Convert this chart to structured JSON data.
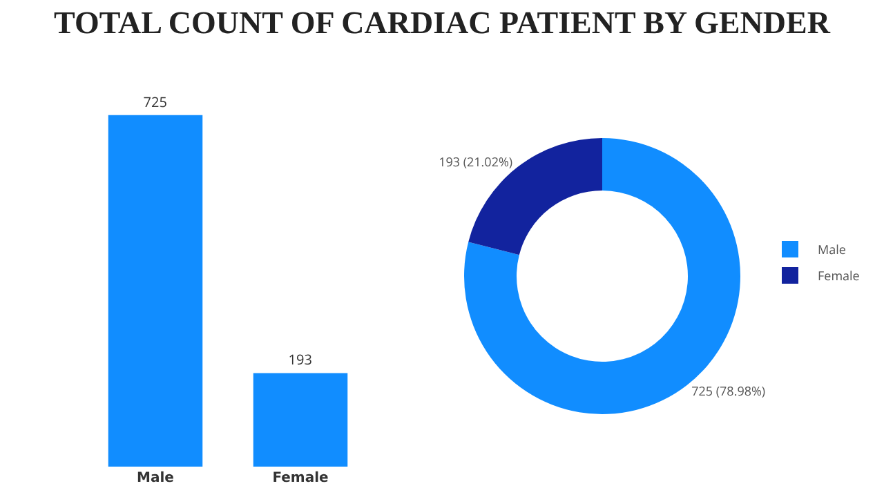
{
  "chart_data": [
    {
      "type": "bar",
      "title": "TOTAL COUNT OF CARDIAC PATIENT BY GENDER",
      "categories": [
        "Male",
        "Female"
      ],
      "values": [
        725,
        193
      ],
      "color": "#118dff",
      "data_labels": true,
      "tick_labels": "x",
      "grid": false
    },
    {
      "type": "donut",
      "categories": [
        "Male",
        "Female"
      ],
      "values": [
        725,
        193
      ],
      "colors": [
        "#118dff",
        "#12239e"
      ],
      "value_labels": [
        "725 (78.98%)",
        "193 (21.02%)"
      ],
      "legend": "right"
    }
  ]
}
